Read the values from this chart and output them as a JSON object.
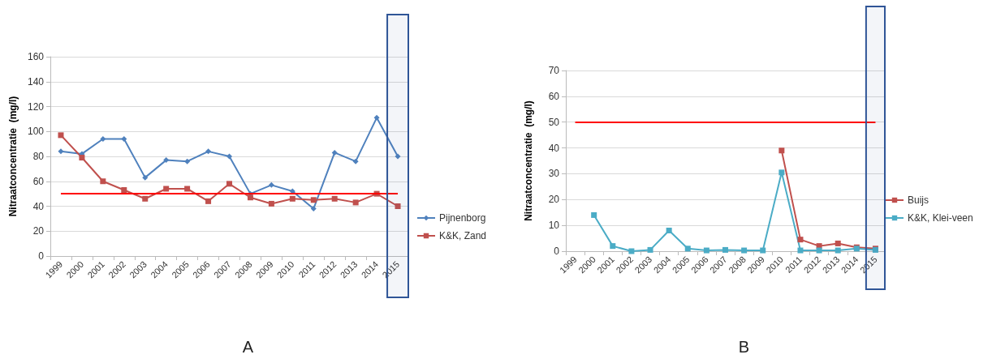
{
  "chart_data": [
    {
      "type": "line",
      "ylabel": "Nitraatconcentratie  (mg/l)",
      "annotations": [
        "A"
      ],
      "categories": [
        "1999",
        "2000",
        "2001",
        "2002",
        "2003",
        "2004",
        "2005",
        "2006",
        "2007",
        "2008",
        "2009",
        "2010",
        "2011",
        "2012",
        "2013",
        "2014",
        "2015"
      ],
      "series": [
        {
          "name": "Pijnenborg",
          "color": "#4f81bd",
          "marker": "diamond",
          "values": [
            84,
            82,
            94,
            94,
            63,
            77,
            76,
            84,
            80,
            50,
            57,
            52,
            38,
            83,
            76,
            111,
            80
          ]
        },
        {
          "name": "K&K, Zand",
          "color": "#c0504d",
          "marker": "square",
          "values": [
            97,
            79,
            60,
            53,
            46,
            54,
            54,
            44,
            58,
            47,
            42,
            46,
            45,
            46,
            43,
            50,
            40
          ]
        }
      ],
      "ylim": [
        0,
        160
      ],
      "yticks": [
        0,
        20,
        40,
        60,
        80,
        100,
        120,
        140,
        160
      ],
      "grid": "y",
      "legend": "right",
      "ref_lines": [
        {
          "axis": "y",
          "value": 50,
          "color": "#ff0000"
        }
      ],
      "bands": [
        {
          "axis": "x",
          "from": "2015",
          "to": "2015",
          "color": "#2f5597"
        }
      ]
    },
    {
      "type": "line",
      "ylabel": "Nitraatconcentratie  (mg/l)",
      "annotations": [
        "B"
      ],
      "categories": [
        "1999",
        "2000",
        "2001",
        "2002",
        "2003",
        "2004",
        "2005",
        "2006",
        "2007",
        "2008",
        "2009",
        "2010",
        "2011",
        "2012",
        "2013",
        "2014",
        "2015"
      ],
      "series": [
        {
          "name": "Buijs",
          "color": "#c0504d",
          "marker": "square",
          "values": [
            null,
            null,
            null,
            null,
            null,
            null,
            null,
            null,
            null,
            null,
            null,
            39,
            4.5,
            2,
            3,
            1.5,
            1
          ]
        },
        {
          "name": "K&K, Klei-veen",
          "color": "#4bacc6",
          "marker": "square",
          "values": [
            null,
            14,
            2,
            0,
            0.5,
            8,
            1,
            0.3,
            0.5,
            0.3,
            0.3,
            30.5,
            0.3,
            0.3,
            0.3,
            1,
            0.5
          ]
        }
      ],
      "ylim": [
        0,
        70
      ],
      "yticks": [
        0,
        10,
        20,
        30,
        40,
        50,
        60,
        70
      ],
      "grid": "y",
      "legend": "right",
      "ref_lines": [
        {
          "axis": "y",
          "value": 50,
          "color": "#ff0000"
        }
      ],
      "bands": [
        {
          "axis": "x",
          "from": "2015",
          "to": "2015",
          "color": "#2f5597"
        }
      ]
    }
  ]
}
